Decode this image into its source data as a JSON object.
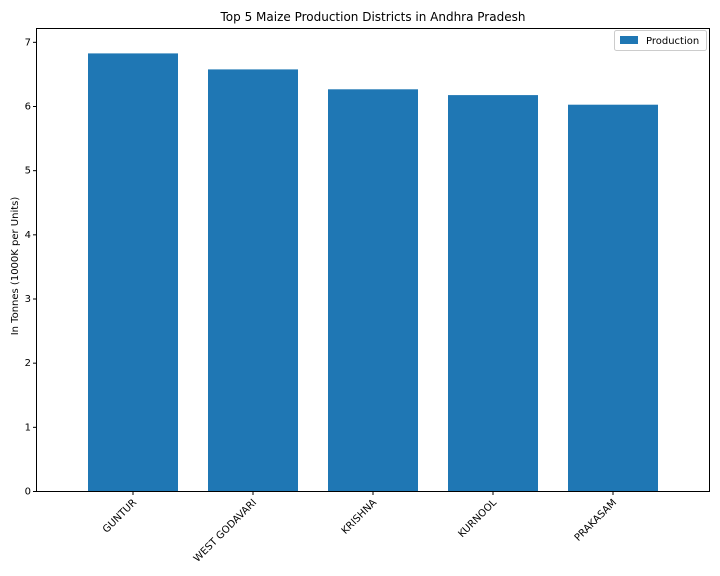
{
  "chart_data": {
    "type": "bar",
    "title": "Top 5 Maize Production Districts in Andhra Pradesh",
    "xlabel": "",
    "ylabel": "In Tonnes (1000K per Units)",
    "categories": [
      "GUNTUR",
      "WEST GODAVARI",
      "KRISHNA",
      "KURNOOL",
      "PRAKASAM"
    ],
    "series": [
      {
        "name": "Production",
        "values": [
          6.82,
          6.57,
          6.26,
          6.17,
          6.02
        ]
      }
    ],
    "ylim": [
      0,
      7.2
    ],
    "yticks": [
      "0",
      "1",
      "2",
      "3",
      "4",
      "5",
      "6",
      "7"
    ],
    "grid": false,
    "legend_position": "top-right",
    "bar_color": "#1f77b4"
  }
}
